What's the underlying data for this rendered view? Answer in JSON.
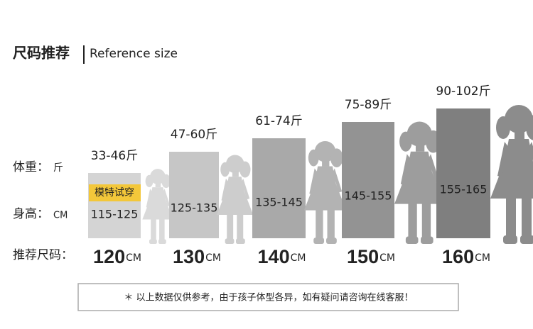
{
  "header": {
    "title": "尺码推荐",
    "subtitle": "Reference size"
  },
  "row_labels": {
    "weight": {
      "label": "体重：",
      "unit": "斤"
    },
    "height": {
      "label": "身高：",
      "unit": "CM"
    },
    "size": {
      "label": "推荐尺码："
    }
  },
  "badge": "模特试穿",
  "columns": [
    {
      "weight": "33-46斤",
      "height": "115-125",
      "size": "120",
      "unit": "CM"
    },
    {
      "weight": "47-60斤",
      "height": "125-135",
      "size": "130",
      "unit": "CM"
    },
    {
      "weight": "61-74斤",
      "height": "135-145",
      "size": "140",
      "unit": "CM"
    },
    {
      "weight": "75-89斤",
      "height": "145-155",
      "size": "150",
      "unit": "CM"
    },
    {
      "weight": "90-102斤",
      "height": "155-165",
      "size": "160",
      "unit": "CM"
    }
  ],
  "footer": "＊ 以上数据仅供参考，由于孩子体型各异，如有疑问请咨询在线客服！"
}
